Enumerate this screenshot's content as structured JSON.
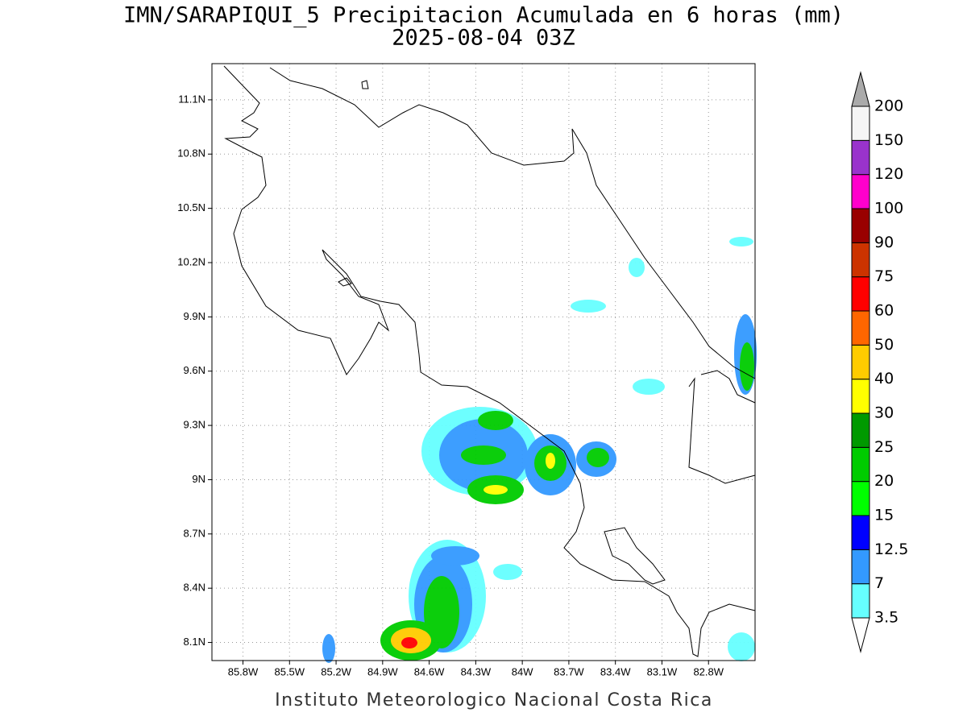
{
  "title": [
    "IMN/SARAPIQUI_5 Precipitacion Acumulada en 6 horas (mm)",
    "2025-08-04 03Z"
  ],
  "map": {
    "type": "map",
    "xlim": [
      -86,
      -82.5
    ],
    "ylim": [
      8,
      11.3
    ],
    "grid": true,
    "xticks": [
      {
        "value": -85.8,
        "label": "85.8W"
      },
      {
        "value": -85.5,
        "label": "85.5W"
      },
      {
        "value": -85.2,
        "label": "85.2W"
      },
      {
        "value": -84.9,
        "label": "84.9W"
      },
      {
        "value": -84.6,
        "label": "84.6W"
      },
      {
        "value": -84.3,
        "label": "84.3W"
      },
      {
        "value": -84,
        "label": "84W"
      },
      {
        "value": -83.7,
        "label": "83.7W"
      },
      {
        "value": -83.4,
        "label": "83.4W"
      },
      {
        "value": -83.1,
        "label": "83.1W"
      },
      {
        "value": -82.8,
        "label": "82.8W"
      }
    ],
    "yticks": [
      {
        "value": 8.1,
        "label": "8.1N"
      },
      {
        "value": 8.4,
        "label": "8.4N"
      },
      {
        "value": 8.7,
        "label": "8.7N"
      },
      {
        "value": 9,
        "label": "9N"
      },
      {
        "value": 9.3,
        "label": "9.3N"
      },
      {
        "value": 9.6,
        "label": "9.6N"
      },
      {
        "value": 9.9,
        "label": "9.9N"
      },
      {
        "value": 10.2,
        "label": "10.2N"
      },
      {
        "value": 10.5,
        "label": "10.5N"
      },
      {
        "value": 10.8,
        "label": "10.8N"
      },
      {
        "value": 11.1,
        "label": "11.1N"
      }
    ]
  },
  "colorbar": {
    "levels": [
      3.5,
      7,
      12.5,
      15,
      20,
      25,
      30,
      40,
      50,
      60,
      75,
      90,
      100,
      120,
      150,
      200
    ],
    "colors": [
      "#66ffff",
      "#3399ff",
      "#0000ff",
      "#00ff00",
      "#00cc00",
      "#009900",
      "#ffff00",
      "#ffcc00",
      "#ff6600",
      "#ff0000",
      "#cc3300",
      "#990000",
      "#ff00cc",
      "#9933cc",
      "#f5f5f5"
    ],
    "under_color": "#ffffff",
    "over_color": "#aaaaaa"
  },
  "footer": "Instituto Meteorologico Nacional Costa Rica"
}
